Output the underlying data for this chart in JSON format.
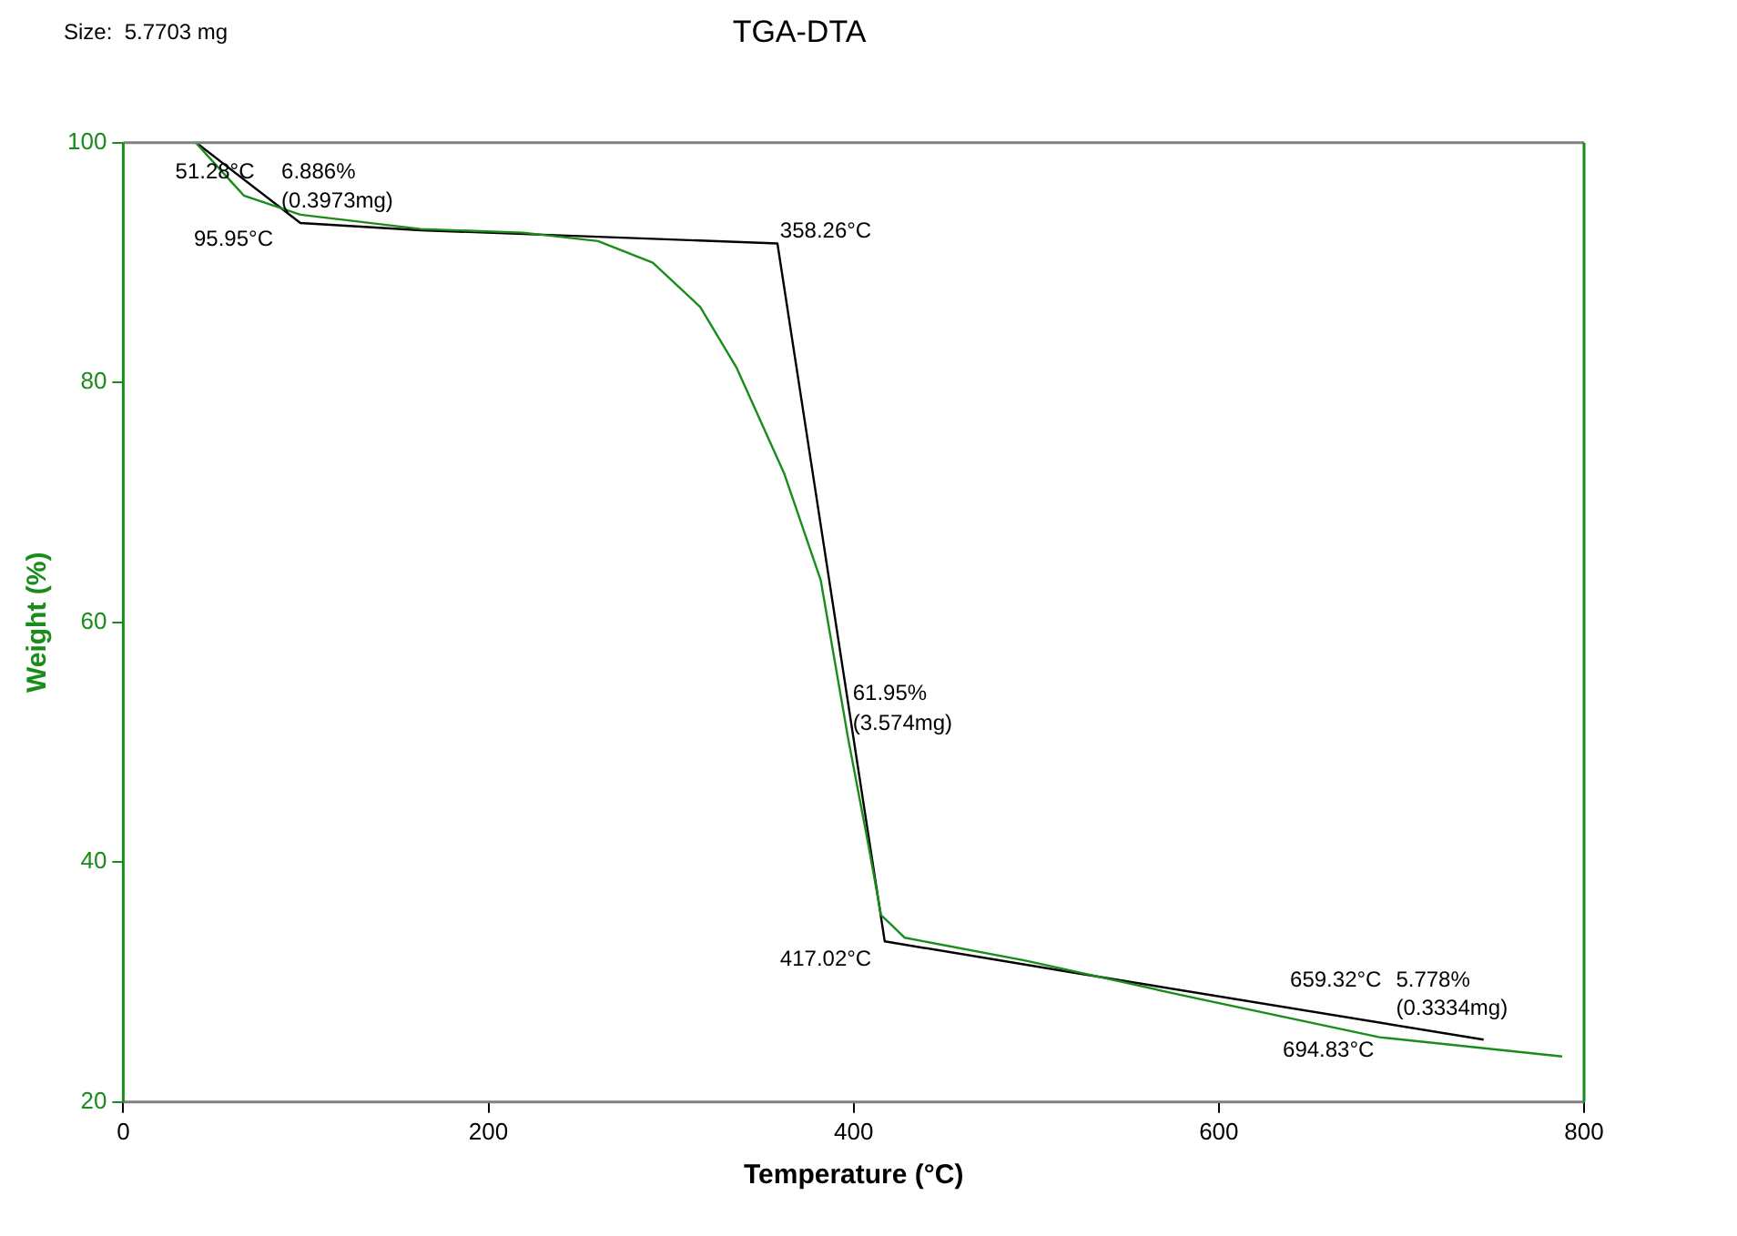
{
  "chart_data": {
    "type": "line",
    "title": "TGA-DTA",
    "xlabel": "Temperature (°C)",
    "ylabel": "Weight (%)",
    "xlim": [
      0,
      800
    ],
    "xticks": [
      0,
      200,
      400,
      600,
      800
    ],
    "ylim": [
      20,
      100
    ],
    "yticks": [
      20,
      40,
      60,
      80,
      100
    ],
    "grid": false,
    "legend": false,
    "marker": "none",
    "line_style": "solid",
    "series": [
      {
        "color": "#1a8c1a",
        "x": [
          39.7,
          66,
          97,
          163,
          219,
          260,
          290,
          316,
          336,
          362,
          382,
          397,
          408,
          415,
          428,
          494,
          586,
          688,
          788
        ],
        "values": [
          100,
          95.6,
          94,
          92.8,
          92.5,
          91.8,
          90,
          86.3,
          81.2,
          72.4,
          63.5,
          50.3,
          41.5,
          35.6,
          33.7,
          31.8,
          28.7,
          25.4,
          23.8
        ]
      },
      {
        "color": "#000000",
        "x": [
          40,
          97,
          163,
          358.26,
          417.02,
          520,
          745
        ],
        "values": [
          100,
          93.3,
          92.7,
          91.6,
          33.4,
          30.8,
          25.2
        ]
      }
    ],
    "annotations": [
      "Size:  5.7703 mg",
      "51.28°C",
      "6.886%",
      "(0.3973mg)",
      "95.95°C",
      "358.26°C",
      "61.95%",
      "(3.574mg)",
      "417.02°C",
      "659.32°C",
      "5.778%",
      "(0.3334mg)",
      "694.83°C"
    ]
  }
}
